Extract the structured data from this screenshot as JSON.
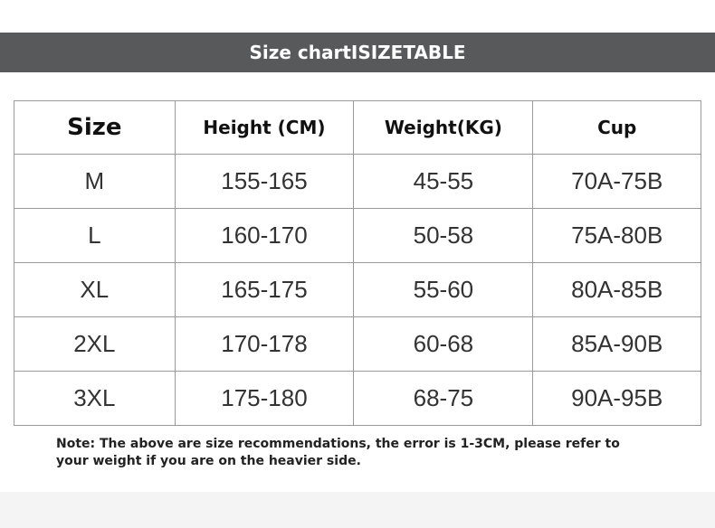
{
  "header": {
    "title": "Size chartISIZETABLE"
  },
  "table": {
    "columns": [
      "Size",
      "Height (CM)",
      "Weight(KG)",
      "Cup"
    ],
    "rows": [
      [
        "M",
        "155-165",
        "45-55",
        "70A-75B"
      ],
      [
        "L",
        "160-170",
        "50-58",
        "75A-80B"
      ],
      [
        "XL",
        "165-175",
        "55-60",
        "80A-85B"
      ],
      [
        "2XL",
        "170-178",
        "60-68",
        "85A-90B"
      ],
      [
        "3XL",
        "175-180",
        "68-75",
        "90A-95B"
      ]
    ]
  },
  "note": "Note: The above are size recommendations, the error is 1-3CM, please refer to your weight if you are on the heavier side."
}
